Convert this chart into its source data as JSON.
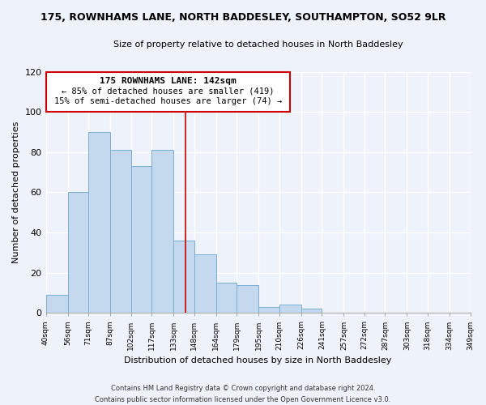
{
  "title": "175, ROWNHAMS LANE, NORTH BADDESLEY, SOUTHAMPTON, SO52 9LR",
  "subtitle": "Size of property relative to detached houses in North Baddesley",
  "xlabel": "Distribution of detached houses by size in North Baddesley",
  "ylabel": "Number of detached properties",
  "bin_edges": [
    40,
    56,
    71,
    87,
    102,
    117,
    133,
    148,
    164,
    179,
    195,
    210,
    226,
    241,
    257,
    272,
    287,
    303,
    318,
    334,
    349
  ],
  "bin_labels": [
    "40sqm",
    "56sqm",
    "71sqm",
    "87sqm",
    "102sqm",
    "117sqm",
    "133sqm",
    "148sqm",
    "164sqm",
    "179sqm",
    "195sqm",
    "210sqm",
    "226sqm",
    "241sqm",
    "257sqm",
    "272sqm",
    "287sqm",
    "303sqm",
    "318sqm",
    "334sqm",
    "349sqm"
  ],
  "counts": [
    9,
    60,
    90,
    81,
    73,
    81,
    36,
    29,
    15,
    14,
    3,
    4,
    2,
    0,
    0,
    0,
    0,
    0,
    0,
    0
  ],
  "bar_color": "#c5d9ee",
  "bar_edge_color": "#7aaed6",
  "annotation_line1": "175 ROWNHAMS LANE: 142sqm",
  "annotation_line2": "← 85% of detached houses are smaller (419)",
  "annotation_line3": "15% of semi-detached houses are larger (74) →",
  "property_value": 142,
  "ylim": [
    0,
    120
  ],
  "background_color": "#eef2fa",
  "grid_color": "#ffffff",
  "vline_color": "#cc0000",
  "box_edge_color": "#cc0000",
  "footer_line1": "Contains HM Land Registry data © Crown copyright and database right 2024.",
  "footer_line2": "Contains public sector information licensed under the Open Government Licence v3.0."
}
